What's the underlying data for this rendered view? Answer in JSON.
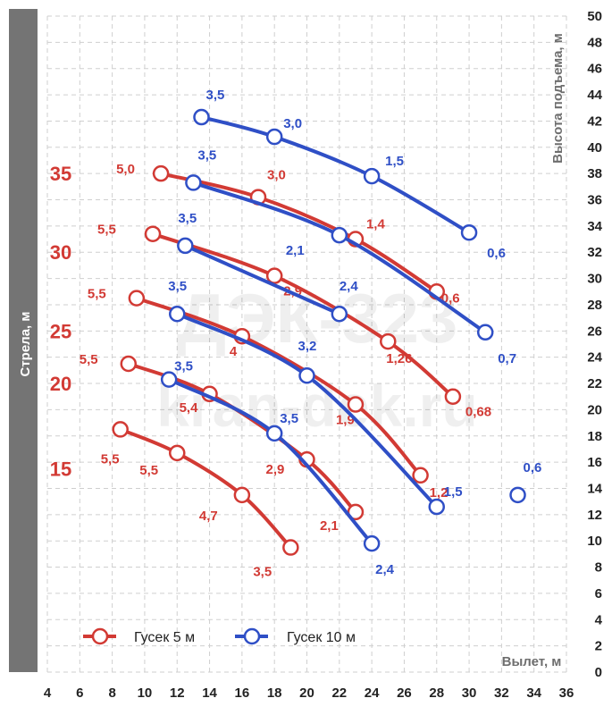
{
  "chart_data": {
    "type": "line",
    "xlabel": "Вылет, м",
    "ylabel": "Высота подъема, м",
    "side_label": "Стрела, м",
    "xlim": [
      4,
      36
    ],
    "ylim": [
      0,
      50
    ],
    "x_ticks": [
      4,
      6,
      8,
      10,
      12,
      14,
      16,
      18,
      20,
      22,
      24,
      26,
      28,
      30,
      32,
      34,
      36
    ],
    "y_ticks": [
      0,
      2,
      4,
      6,
      8,
      10,
      12,
      14,
      16,
      18,
      20,
      22,
      24,
      26,
      28,
      30,
      32,
      34,
      36,
      38,
      40,
      42,
      44,
      46,
      48,
      50
    ],
    "grid": true,
    "watermark": [
      "ДЭК-323",
      "kran-dek.ru"
    ],
    "colors": {
      "red": "#d23a34",
      "blue": "#2f4fc6",
      "left_band": "#747474"
    },
    "boom_lengths": [
      {
        "label": "35",
        "y": 38.0
      },
      {
        "label": "30",
        "y": 32.0
      },
      {
        "label": "25",
        "y": 26.0
      },
      {
        "label": "20",
        "y": 22.0
      },
      {
        "label": "15",
        "y": 15.5
      }
    ],
    "legend": {
      "placement": "bottom-left",
      "items": [
        {
          "name": "Гусек 5 м",
          "color": "#d23a34"
        },
        {
          "name": "Гусек 10 м",
          "color": "#2f4fc6"
        }
      ]
    },
    "series": [
      {
        "group": "Гусек 5 м",
        "color": "#d23a34",
        "points": [
          {
            "x": 11.0,
            "y": 38.0,
            "label": "5,0"
          },
          {
            "x": 17.0,
            "y": 36.2,
            "label": "3,0"
          },
          {
            "x": 23.0,
            "y": 33.0,
            "label": "1,4"
          },
          {
            "x": 28.0,
            "y": 29.0,
            "label": "0,6"
          }
        ]
      },
      {
        "group": "Гусек 5 м",
        "color": "#d23a34",
        "points": [
          {
            "x": 10.5,
            "y": 33.4,
            "label": "5,5"
          },
          {
            "x": 18.0,
            "y": 30.2,
            "label": "2,9"
          },
          {
            "x": 25.0,
            "y": 25.2,
            "label": "1,26"
          },
          {
            "x": 29.0,
            "y": 21.0,
            "label": "0,68"
          }
        ]
      },
      {
        "group": "Гусек 5 м",
        "color": "#d23a34",
        "points": [
          {
            "x": 9.5,
            "y": 28.5,
            "label": "5,5"
          },
          {
            "x": 16.0,
            "y": 25.6,
            "label": "4"
          },
          {
            "x": 23.0,
            "y": 20.4,
            "label": "1,9"
          },
          {
            "x": 27.0,
            "y": 15.0,
            "label": "1,2"
          }
        ]
      },
      {
        "group": "Гусек 5 м",
        "color": "#d23a34",
        "points": [
          {
            "x": 9.0,
            "y": 23.5,
            "label": "5,5"
          },
          {
            "x": 14.0,
            "y": 21.2,
            "label": "5,4"
          },
          {
            "x": 20.0,
            "y": 16.2,
            "label": "2,9"
          },
          {
            "x": 23.0,
            "y": 12.2,
            "label": "2,1"
          }
        ]
      },
      {
        "group": "Гусек 5 м",
        "color": "#d23a34",
        "points": [
          {
            "x": 8.5,
            "y": 18.5,
            "label": "5,5"
          },
          {
            "x": 12.0,
            "y": 16.7,
            "label": "5,5"
          },
          {
            "x": 16.0,
            "y": 13.5,
            "label": "4,7"
          },
          {
            "x": 19.0,
            "y": 9.5,
            "label": "3,5"
          }
        ]
      },
      {
        "group": "Гусек 10 м",
        "color": "#2f4fc6",
        "points": [
          {
            "x": 13.5,
            "y": 42.3,
            "label": "3,5"
          },
          {
            "x": 18.0,
            "y": 40.8,
            "label": "3,0"
          },
          {
            "x": 24.0,
            "y": 37.8,
            "label": "1,5"
          },
          {
            "x": 30.0,
            "y": 33.5,
            "label": "0,6"
          }
        ]
      },
      {
        "group": "Гусек 10 м",
        "color": "#2f4fc6",
        "points": [
          {
            "x": 13.0,
            "y": 37.3,
            "label": "3,5"
          },
          {
            "x": 22.0,
            "y": 33.3,
            "label": "2,1"
          },
          {
            "x": 31.0,
            "y": 25.9,
            "label": "0,7"
          }
        ]
      },
      {
        "group": "Гусек 10 м",
        "color": "#2f4fc6",
        "points": [
          {
            "x": 12.5,
            "y": 32.5,
            "label": "3,5"
          },
          {
            "x": 22.0,
            "y": 27.3,
            "label": "2,4"
          }
        ]
      },
      {
        "group": "Гусек 10 м",
        "color": "#2f4fc6",
        "points": [
          {
            "x": 12.0,
            "y": 27.3,
            "label": "3,5"
          },
          {
            "x": 20.0,
            "y": 22.6,
            "label": "3,2"
          },
          {
            "x": 28.0,
            "y": 12.6,
            "label": "1,5"
          }
        ]
      },
      {
        "group": "Гусек 10 м",
        "color": "#2f4fc6",
        "points": [
          {
            "x": 11.5,
            "y": 22.3,
            "label": "3,5"
          },
          {
            "x": 18.0,
            "y": 18.2,
            "label": "3,5"
          },
          {
            "x": 24.0,
            "y": 9.8,
            "label": "2,4"
          }
        ]
      },
      {
        "group": "Гусек 10 м",
        "color": "#2f4fc6",
        "points": [
          {
            "x": 33.0,
            "y": 13.5,
            "label": "0,6"
          }
        ]
      }
    ]
  }
}
